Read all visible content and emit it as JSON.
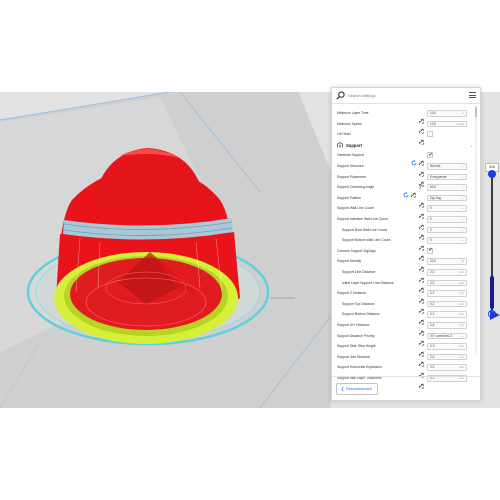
{
  "search": {
    "placeholder": "Search settings"
  },
  "settings_rows": [
    {
      "label": "Minimum Layer Time",
      "value": "10.0",
      "unit": "s"
    },
    {
      "label": "Minimum Speed",
      "value": "10.0",
      "unit": "mm/s"
    },
    {
      "label": "Lift Head",
      "checked": false
    },
    {
      "label": "Support",
      "section_icon": "support-icon"
    },
    {
      "label": "Generate Support",
      "checked": true
    },
    {
      "label": "Support Structure",
      "value": "Normal"
    },
    {
      "label": "Support Placement",
      "value": "Everywhere"
    },
    {
      "label": "Support Overhang Angle",
      "value": "60.0",
      "unit": "°"
    },
    {
      "label": "Support Pattern",
      "value": "Zig Zag"
    },
    {
      "label": "Support Wall Line Count",
      "value": "0"
    },
    {
      "label": "Support Interface Wall Line Count",
      "value": "0"
    },
    {
      "label": "Support Roof Wall Line Count",
      "value": "0"
    },
    {
      "label": "Support Bottom Wall Line Count",
      "value": "0"
    },
    {
      "label": "Connect Support ZigZags",
      "checked": true
    },
    {
      "label": "Support Density",
      "value": "20.0",
      "unit": "%"
    },
    {
      "label": "Support Line Distance",
      "value": "2.0",
      "unit": "mm"
    },
    {
      "label": "Initial Layer Support Line Distance",
      "value": "2.0",
      "unit": "mm"
    },
    {
      "label": "Support Z Distance",
      "value": "0.2",
      "unit": "mm"
    },
    {
      "label": "Support Top Distance",
      "value": "0.2",
      "unit": "mm"
    },
    {
      "label": "Support Bottom Distance",
      "value": "0.2",
      "unit": "mm"
    },
    {
      "label": "Support X/Y Distance",
      "value": "0.6",
      "unit": "mm"
    },
    {
      "label": "Support Distance Priority",
      "value": "X/Y overrides Z"
    },
    {
      "label": "Support Stair Step Height",
      "value": "0.3",
      "unit": "mm"
    },
    {
      "label": "Support Join Distance",
      "value": "2.0",
      "unit": "mm"
    },
    {
      "label": "Support Horizontal Expansion",
      "value": "0.0",
      "unit": "mm"
    },
    {
      "label": "Support Infill Layer Thickness",
      "value": "0.2",
      "unit": "mm"
    }
  ],
  "footer": {
    "recommended_label": "Recommended"
  },
  "layer_slider": {
    "top_value": "316"
  },
  "colors": {
    "model_red": "#e8141a",
    "support_cyan": "#5fd0e0",
    "skirt_yellow": "#d6f03a",
    "accent_blue": "#196ef0",
    "build_plate": "#cfcfcf"
  }
}
